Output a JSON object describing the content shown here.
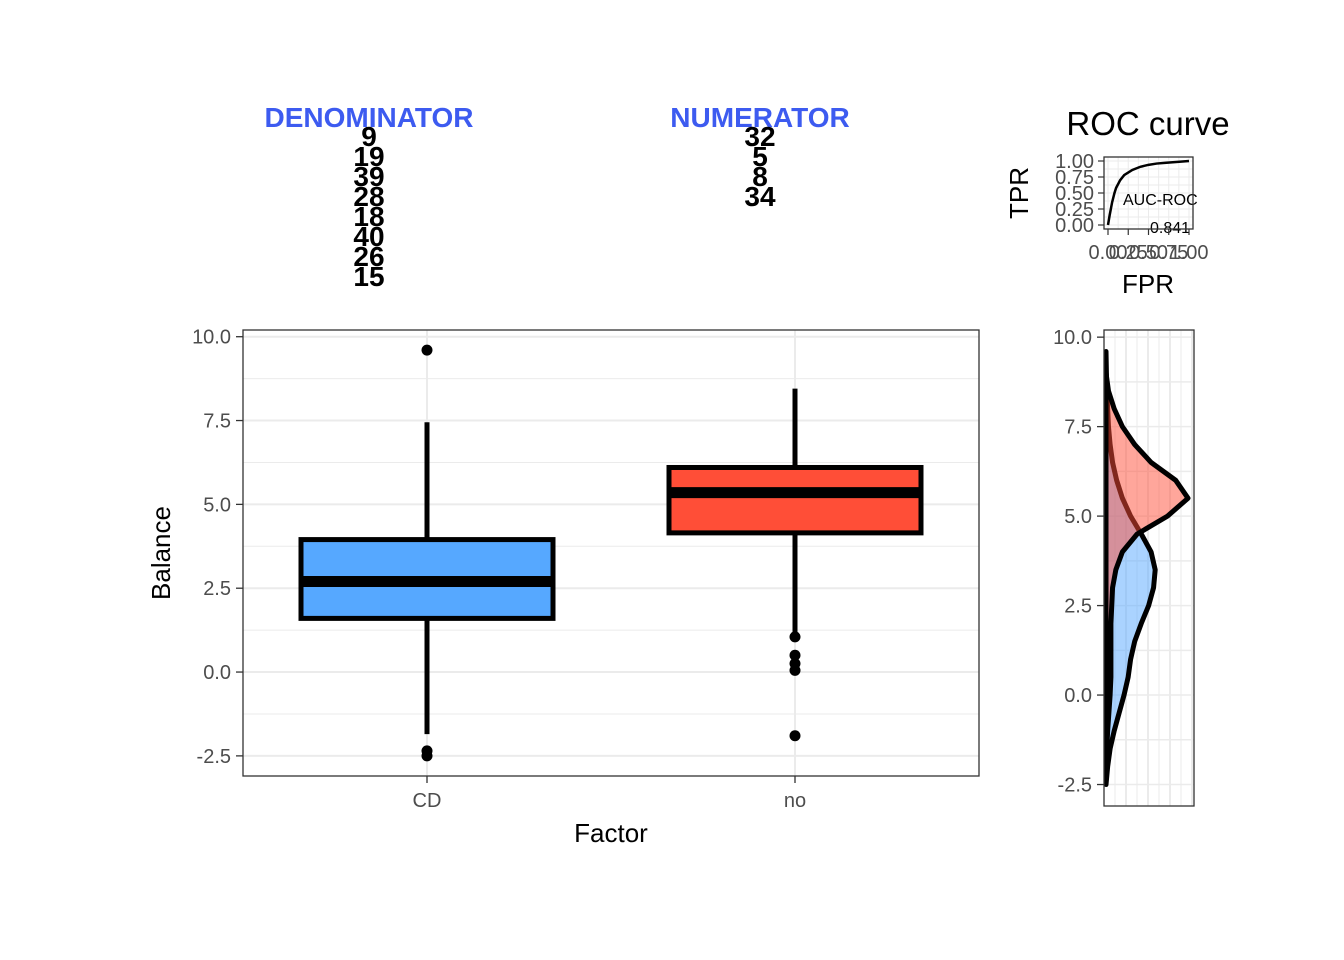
{
  "header": {
    "denominator_label": "DENOMINATOR",
    "numerator_label": "NUMERATOR",
    "denominator_values": [
      "9",
      "19",
      "39",
      "28",
      "18",
      "40",
      "26",
      "15"
    ],
    "numerator_values": [
      "32",
      "5",
      "8",
      "34"
    ]
  },
  "roc": {
    "title": "ROC curve",
    "xlabel": "FPR",
    "ylabel": "TPR",
    "x_ticks": [
      "0.00",
      "0.25",
      "0.50",
      "0.75",
      "1.00"
    ],
    "y_ticks": [
      "0.00",
      "0.25",
      "0.50",
      "0.75",
      "1.00"
    ],
    "auc_label": "AUC-ROC",
    "auc_value": "0.841"
  },
  "chart_data": [
    {
      "type": "box",
      "title": "",
      "xlabel": "Factor",
      "ylabel": "Balance",
      "ylim": [
        -3.1,
        10.2
      ],
      "y_ticks": [
        "-2.5",
        "0.0",
        "2.5",
        "5.0",
        "7.5",
        "10.0"
      ],
      "categories": [
        "CD",
        "no"
      ],
      "boxes": [
        {
          "name": "CD",
          "color": "#56A8FF",
          "whisker_low": -1.85,
          "q1": 1.6,
          "median": 2.7,
          "q3": 3.95,
          "whisker_high": 7.45,
          "outliers": [
            9.6,
            -2.35,
            -2.5
          ]
        },
        {
          "name": "no",
          "color": "#FF4E37",
          "whisker_low": 1.1,
          "q1": 4.15,
          "median": 5.35,
          "q3": 6.1,
          "whisker_high": 8.45,
          "outliers": [
            1.05,
            0.5,
            0.25,
            0.05,
            -1.9
          ]
        }
      ],
      "grid": true
    },
    {
      "type": "area",
      "title": "",
      "xlabel": "",
      "ylabel": "",
      "ylim": [
        -3.1,
        10.2
      ],
      "y_ticks": [
        "-2.5",
        "0.0",
        "2.5",
        "5.0",
        "7.5",
        "10.0"
      ],
      "series": [
        {
          "color": "#56A8FF",
          "y": [
            -2.5,
            -2.0,
            -1.5,
            -1.0,
            -0.5,
            0.0,
            0.5,
            1.0,
            1.5,
            2.0,
            2.5,
            3.0,
            3.5,
            4.0,
            4.5,
            5.0,
            5.5,
            6.0,
            6.5,
            7.0,
            7.5,
            8.0,
            8.5,
            9.0,
            9.6
          ],
          "density": [
            0.0,
            0.02,
            0.05,
            0.1,
            0.16,
            0.22,
            0.27,
            0.3,
            0.35,
            0.43,
            0.52,
            0.58,
            0.6,
            0.55,
            0.43,
            0.3,
            0.2,
            0.13,
            0.08,
            0.05,
            0.03,
            0.02,
            0.01,
            0.005,
            0.0
          ]
        },
        {
          "color": "#FF4E37",
          "y": [
            -2.0,
            -1.0,
            0.0,
            0.5,
            1.0,
            2.0,
            3.0,
            3.5,
            4.0,
            4.5,
            5.0,
            5.5,
            6.0,
            6.5,
            7.0,
            7.5,
            8.0,
            8.5,
            9.0
          ],
          "density": [
            0.0,
            0.02,
            0.05,
            0.06,
            0.06,
            0.06,
            0.08,
            0.12,
            0.2,
            0.38,
            0.75,
            1.0,
            0.85,
            0.55,
            0.35,
            0.2,
            0.1,
            0.03,
            0.0
          ]
        }
      ],
      "grid": true
    },
    {
      "type": "line",
      "title": "ROC curve",
      "xlabel": "FPR",
      "ylabel": "TPR",
      "xlim": [
        0,
        1
      ],
      "ylim": [
        0,
        1
      ],
      "x": [
        0.0,
        0.02,
        0.05,
        0.08,
        0.1,
        0.15,
        0.2,
        0.3,
        0.4,
        0.5,
        0.6,
        0.7,
        0.8,
        0.9,
        1.0
      ],
      "y": [
        0.0,
        0.15,
        0.35,
        0.5,
        0.58,
        0.7,
        0.78,
        0.86,
        0.91,
        0.94,
        0.96,
        0.97,
        0.98,
        0.99,
        1.0
      ],
      "grid": true
    }
  ]
}
